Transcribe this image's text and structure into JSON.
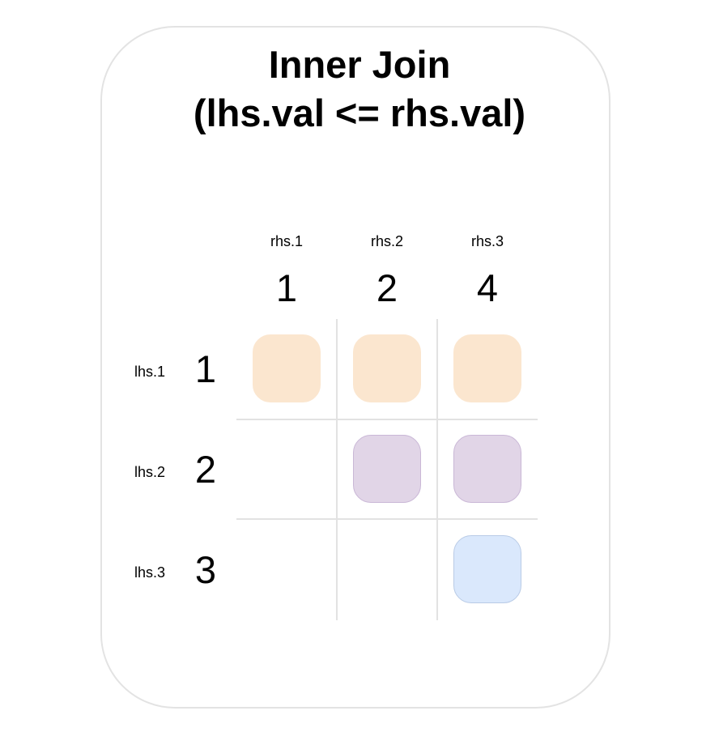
{
  "title": {
    "line1": "Inner Join",
    "line2": "(lhs.val <= rhs.val)"
  },
  "columns": [
    {
      "label": "rhs.1",
      "value": "1"
    },
    {
      "label": "rhs.2",
      "value": "2"
    },
    {
      "label": "rhs.3",
      "value": "4"
    }
  ],
  "rows": [
    {
      "label": "lhs.1",
      "value": "1"
    },
    {
      "label": "lhs.2",
      "value": "2"
    },
    {
      "label": "lhs.3",
      "value": "3"
    }
  ],
  "matches": [
    [
      true,
      true,
      true
    ],
    [
      false,
      true,
      true
    ],
    [
      false,
      false,
      true
    ]
  ],
  "colors": {
    "row1_fill": "#fbe6cf",
    "row1_stroke": "#fbe6cf",
    "row2_fill": "#e1d5e7",
    "row2_stroke": "#c9b7d6",
    "row3_fill": "#dae8fc",
    "row3_stroke": "#b9cbe6",
    "grid": "#e2e2e2",
    "card_border": "#e3e3e3"
  }
}
